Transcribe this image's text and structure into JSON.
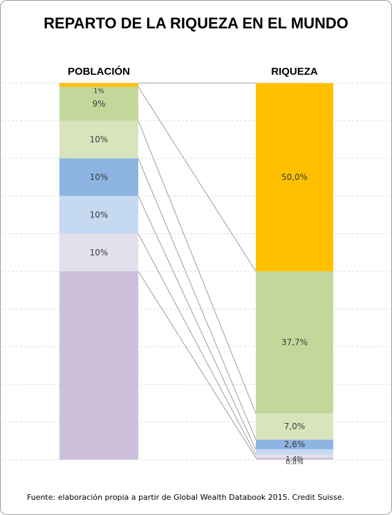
{
  "title": "REPARTO DE LA RIQUEZA EN EL MUNDO",
  "source": "Fuente: elaboración propia a partir de Global Wealth Databook 2015. Credit Suisse.",
  "chart_data": {
    "type": "bar",
    "stacked": true,
    "percent_scale": [
      0,
      100
    ],
    "grid": true,
    "columns": [
      {
        "name": "POBLACIÓN",
        "segments": [
          {
            "value": 1,
            "label": "1%",
            "color": "#ffc000"
          },
          {
            "value": 9,
            "label": "9%",
            "color": "#c4d79b"
          },
          {
            "value": 10,
            "label": "10%",
            "color": "#d8e4bc"
          },
          {
            "value": 10,
            "label": "10%",
            "color": "#8db4e2"
          },
          {
            "value": 10,
            "label": "10%",
            "color": "#c5d9f1"
          },
          {
            "value": 10,
            "label": "10%",
            "color": "#e4dfec"
          },
          {
            "value": 50,
            "label": "",
            "color": "#ccc0da"
          }
        ]
      },
      {
        "name": "RIQUEZA",
        "segments": [
          {
            "value": 50.0,
            "label": "50,0%",
            "color": "#ffc000"
          },
          {
            "value": 37.7,
            "label": "37,7%",
            "color": "#c4d79b"
          },
          {
            "value": 7.0,
            "label": "7,0%",
            "color": "#d8e4bc"
          },
          {
            "value": 2.6,
            "label": "2,6%",
            "color": "#8db4e2"
          },
          {
            "value": 1.4,
            "label": "1,4%",
            "color": "#c5d9f1"
          },
          {
            "value": 0.8,
            "label": "0,8%",
            "color": "#e4dfec"
          },
          {
            "value": 0.5,
            "label": "",
            "color": "#ccc0da"
          }
        ]
      }
    ]
  }
}
